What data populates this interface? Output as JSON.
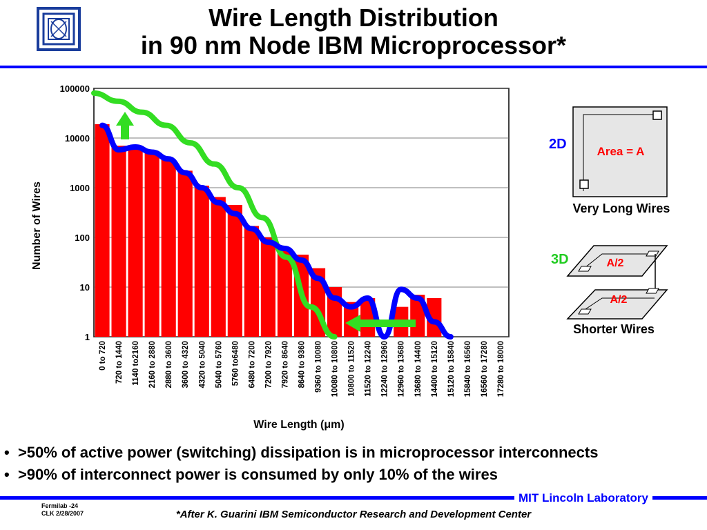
{
  "title": {
    "line1": "Wire Length Distribution",
    "line2": "in 90 nm Node IBM Microprocessor*"
  },
  "chart_data": {
    "type": "bar",
    "ylabel": "Number of Wires",
    "xlabel": "Wire Length (μm)",
    "yscale": "log",
    "ylim": [
      1,
      100000
    ],
    "yticks": [
      "100000",
      "10000",
      "1000",
      "100",
      "10",
      "1"
    ],
    "grid": "horizontal",
    "categories": [
      "0 to 720",
      "720 to 1440",
      "1140 to2160",
      "2160 to 2880",
      "2880 to 3600",
      "3600 to 4320",
      "4320 to 5040",
      "5040 to 5760",
      "5760 to6480",
      "6480 to 7200",
      "7200 to 7920",
      "7920 to 8640",
      "8640 to 9360",
      "9360 to 10080",
      "10080 to 10800",
      "10800 to 11520",
      "11520 to 12240",
      "12240 to 12960",
      "12960 to 13680",
      "13680 to 14400",
      "14400 to 15120",
      "15120 to 15840",
      "15840 to 16560",
      "16560 to 17280",
      "17280 to 18000"
    ],
    "values": [
      19000,
      7000,
      6500,
      5000,
      3700,
      2200,
      1100,
      650,
      450,
      170,
      100,
      60,
      45,
      24,
      10,
      5,
      6,
      1,
      4,
      7,
      6,
      0,
      0,
      0,
      0
    ],
    "blue_curve": [
      18000,
      5800,
      6600,
      5200,
      3800,
      2000,
      1000,
      500,
      300,
      150,
      80,
      60,
      35,
      15,
      6,
      4,
      6,
      1,
      9,
      6,
      2,
      1
    ],
    "green_curve": [
      80000,
      55000,
      33000,
      18000,
      8000,
      3000,
      1000,
      250,
      40,
      4,
      1
    ],
    "colors": {
      "bars": "#ff0000",
      "blue_curve": "#0000ff",
      "green_curve": "#33dd22"
    }
  },
  "diagram": {
    "label_2d": "2D",
    "area_2d": "Area = A",
    "caption_2d": "Very Long Wires",
    "label_3d": "3D",
    "area_3d_top": "A/2",
    "area_3d_bottom": "A/2",
    "caption_3d": "Shorter Wires"
  },
  "bullets": [
    ">50% of  active power (switching) dissipation is in microprocessor interconnects",
    ">90% of interconnect power is consumed by only 10% of the wires"
  ],
  "footer": {
    "left_line1": "Fermilab -24",
    "left_line2": "CLK 2/28/2007",
    "citation": "*After K. Guarini IBM Semiconductor Research and Development Center",
    "org": "MIT Lincoln Laboratory"
  },
  "logo_icon": "mit-ll-logo-icon"
}
